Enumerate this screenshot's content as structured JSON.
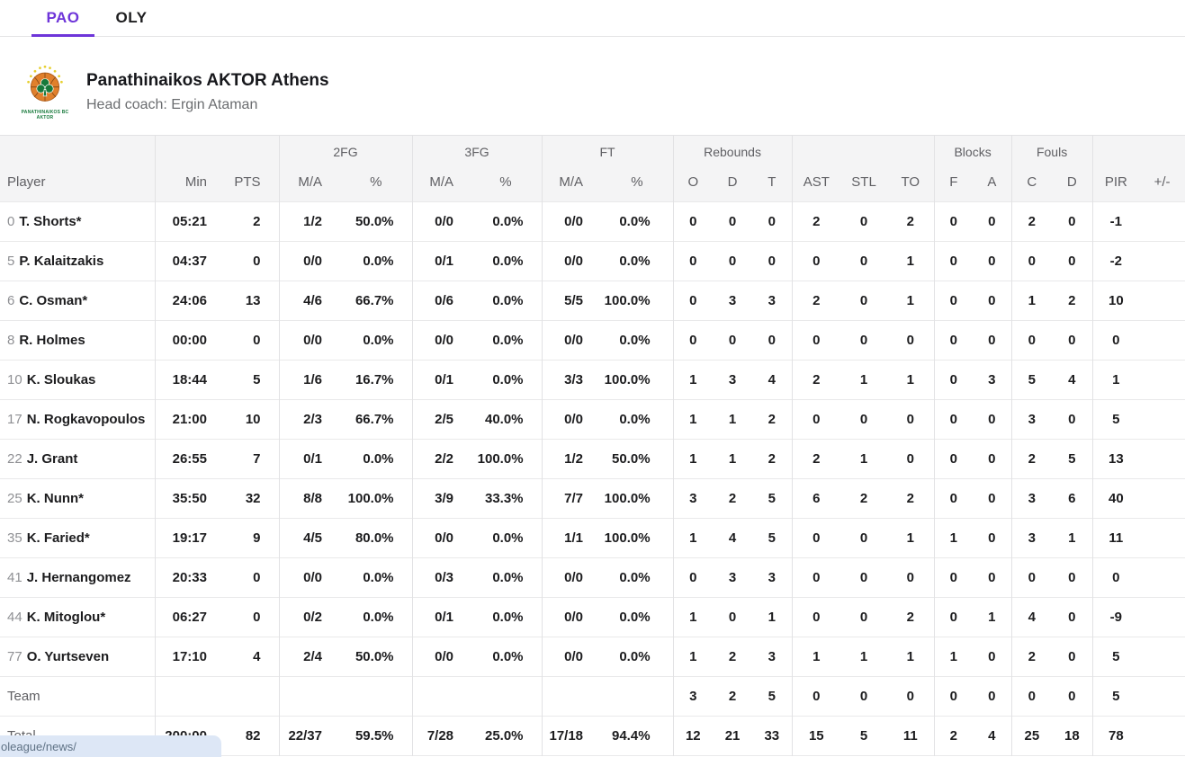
{
  "tabs": {
    "pao": "PAO",
    "oly": "OLY"
  },
  "team": {
    "name": "Panathinaikos AKTOR Athens",
    "coach": "Head coach: Ergin Ataman",
    "logo_text_line1": "PANATHINAIKOS BC",
    "logo_text_line2": "AKTOR"
  },
  "table": {
    "groups": {
      "fg2": "2FG",
      "fg3": "3FG",
      "ft": "FT",
      "rebounds": "Rebounds",
      "blocks": "Blocks",
      "fouls": "Fouls"
    },
    "headers": {
      "player": "Player",
      "min": "Min",
      "pts": "PTS",
      "ma": "M/A",
      "pct": "%",
      "reb_o": "O",
      "reb_d": "D",
      "reb_t": "T",
      "ast": "AST",
      "stl": "STL",
      "to": "TO",
      "blk_f": "F",
      "blk_a": "A",
      "foul_c": "C",
      "foul_d": "D",
      "pir": "PIR",
      "plus_minus": "+/-"
    },
    "rows": [
      {
        "num": "0",
        "name": "T. Shorts*",
        "min": "05:21",
        "pts": "2",
        "fg2_ma": "1/2",
        "fg2_pct": "50.0%",
        "fg3_ma": "0/0",
        "fg3_pct": "0.0%",
        "ft_ma": "0/0",
        "ft_pct": "0.0%",
        "reb_o": "0",
        "reb_d": "0",
        "reb_t": "0",
        "ast": "2",
        "stl": "0",
        "to": "2",
        "blk_f": "0",
        "blk_a": "0",
        "foul_c": "2",
        "foul_d": "0",
        "pir": "-1",
        "pm": ""
      },
      {
        "num": "5",
        "name": "P. Kalaitzakis",
        "min": "04:37",
        "pts": "0",
        "fg2_ma": "0/0",
        "fg2_pct": "0.0%",
        "fg3_ma": "0/1",
        "fg3_pct": "0.0%",
        "ft_ma": "0/0",
        "ft_pct": "0.0%",
        "reb_o": "0",
        "reb_d": "0",
        "reb_t": "0",
        "ast": "0",
        "stl": "0",
        "to": "1",
        "blk_f": "0",
        "blk_a": "0",
        "foul_c": "0",
        "foul_d": "0",
        "pir": "-2",
        "pm": ""
      },
      {
        "num": "6",
        "name": "C. Osman*",
        "min": "24:06",
        "pts": "13",
        "fg2_ma": "4/6",
        "fg2_pct": "66.7%",
        "fg3_ma": "0/6",
        "fg3_pct": "0.0%",
        "ft_ma": "5/5",
        "ft_pct": "100.0%",
        "reb_o": "0",
        "reb_d": "3",
        "reb_t": "3",
        "ast": "2",
        "stl": "0",
        "to": "1",
        "blk_f": "0",
        "blk_a": "0",
        "foul_c": "1",
        "foul_d": "2",
        "pir": "10",
        "pm": ""
      },
      {
        "num": "8",
        "name": "R. Holmes",
        "min": "00:00",
        "pts": "0",
        "fg2_ma": "0/0",
        "fg2_pct": "0.0%",
        "fg3_ma": "0/0",
        "fg3_pct": "0.0%",
        "ft_ma": "0/0",
        "ft_pct": "0.0%",
        "reb_o": "0",
        "reb_d": "0",
        "reb_t": "0",
        "ast": "0",
        "stl": "0",
        "to": "0",
        "blk_f": "0",
        "blk_a": "0",
        "foul_c": "0",
        "foul_d": "0",
        "pir": "0",
        "pm": ""
      },
      {
        "num": "10",
        "name": "K. Sloukas",
        "min": "18:44",
        "pts": "5",
        "fg2_ma": "1/6",
        "fg2_pct": "16.7%",
        "fg3_ma": "0/1",
        "fg3_pct": "0.0%",
        "ft_ma": "3/3",
        "ft_pct": "100.0%",
        "reb_o": "1",
        "reb_d": "3",
        "reb_t": "4",
        "ast": "2",
        "stl": "1",
        "to": "1",
        "blk_f": "0",
        "blk_a": "3",
        "foul_c": "5",
        "foul_d": "4",
        "pir": "1",
        "pm": ""
      },
      {
        "num": "17",
        "name": "N. Rogkavopoulos",
        "min": "21:00",
        "pts": "10",
        "fg2_ma": "2/3",
        "fg2_pct": "66.7%",
        "fg3_ma": "2/5",
        "fg3_pct": "40.0%",
        "ft_ma": "0/0",
        "ft_pct": "0.0%",
        "reb_o": "1",
        "reb_d": "1",
        "reb_t": "2",
        "ast": "0",
        "stl": "0",
        "to": "0",
        "blk_f": "0",
        "blk_a": "0",
        "foul_c": "3",
        "foul_d": "0",
        "pir": "5",
        "pm": ""
      },
      {
        "num": "22",
        "name": "J. Grant",
        "min": "26:55",
        "pts": "7",
        "fg2_ma": "0/1",
        "fg2_pct": "0.0%",
        "fg3_ma": "2/2",
        "fg3_pct": "100.0%",
        "ft_ma": "1/2",
        "ft_pct": "50.0%",
        "reb_o": "1",
        "reb_d": "1",
        "reb_t": "2",
        "ast": "2",
        "stl": "1",
        "to": "0",
        "blk_f": "0",
        "blk_a": "0",
        "foul_c": "2",
        "foul_d": "5",
        "pir": "13",
        "pm": ""
      },
      {
        "num": "25",
        "name": "K. Nunn*",
        "min": "35:50",
        "pts": "32",
        "fg2_ma": "8/8",
        "fg2_pct": "100.0%",
        "fg3_ma": "3/9",
        "fg3_pct": "33.3%",
        "ft_ma": "7/7",
        "ft_pct": "100.0%",
        "reb_o": "3",
        "reb_d": "2",
        "reb_t": "5",
        "ast": "6",
        "stl": "2",
        "to": "2",
        "blk_f": "0",
        "blk_a": "0",
        "foul_c": "3",
        "foul_d": "6",
        "pir": "40",
        "pm": ""
      },
      {
        "num": "35",
        "name": "K. Faried*",
        "min": "19:17",
        "pts": "9",
        "fg2_ma": "4/5",
        "fg2_pct": "80.0%",
        "fg3_ma": "0/0",
        "fg3_pct": "0.0%",
        "ft_ma": "1/1",
        "ft_pct": "100.0%",
        "reb_o": "1",
        "reb_d": "4",
        "reb_t": "5",
        "ast": "0",
        "stl": "0",
        "to": "1",
        "blk_f": "1",
        "blk_a": "0",
        "foul_c": "3",
        "foul_d": "1",
        "pir": "11",
        "pm": ""
      },
      {
        "num": "41",
        "name": "J. Hernangomez",
        "min": "20:33",
        "pts": "0",
        "fg2_ma": "0/0",
        "fg2_pct": "0.0%",
        "fg3_ma": "0/3",
        "fg3_pct": "0.0%",
        "ft_ma": "0/0",
        "ft_pct": "0.0%",
        "reb_o": "0",
        "reb_d": "3",
        "reb_t": "3",
        "ast": "0",
        "stl": "0",
        "to": "0",
        "blk_f": "0",
        "blk_a": "0",
        "foul_c": "0",
        "foul_d": "0",
        "pir": "0",
        "pm": ""
      },
      {
        "num": "44",
        "name": "K. Mitoglou*",
        "min": "06:27",
        "pts": "0",
        "fg2_ma": "0/2",
        "fg2_pct": "0.0%",
        "fg3_ma": "0/1",
        "fg3_pct": "0.0%",
        "ft_ma": "0/0",
        "ft_pct": "0.0%",
        "reb_o": "1",
        "reb_d": "0",
        "reb_t": "1",
        "ast": "0",
        "stl": "0",
        "to": "2",
        "blk_f": "0",
        "blk_a": "1",
        "foul_c": "4",
        "foul_d": "0",
        "pir": "-9",
        "pm": ""
      },
      {
        "num": "77",
        "name": "O. Yurtseven",
        "min": "17:10",
        "pts": "4",
        "fg2_ma": "2/4",
        "fg2_pct": "50.0%",
        "fg3_ma": "0/0",
        "fg3_pct": "0.0%",
        "ft_ma": "0/0",
        "ft_pct": "0.0%",
        "reb_o": "1",
        "reb_d": "2",
        "reb_t": "3",
        "ast": "1",
        "stl": "1",
        "to": "1",
        "blk_f": "1",
        "blk_a": "0",
        "foul_c": "2",
        "foul_d": "0",
        "pir": "5",
        "pm": ""
      }
    ],
    "team_row": {
      "label": "Team",
      "min": "",
      "pts": "",
      "fg2_ma": "",
      "fg2_pct": "",
      "fg3_ma": "",
      "fg3_pct": "",
      "ft_ma": "",
      "ft_pct": "",
      "reb_o": "3",
      "reb_d": "2",
      "reb_t": "5",
      "ast": "0",
      "stl": "0",
      "to": "0",
      "blk_f": "0",
      "blk_a": "0",
      "foul_c": "0",
      "foul_d": "0",
      "pir": "5",
      "pm": ""
    },
    "total_row": {
      "label": "Total",
      "min": "200:00",
      "pts": "82",
      "fg2_ma": "22/37",
      "fg2_pct": "59.5%",
      "fg3_ma": "7/28",
      "fg3_pct": "25.0%",
      "ft_ma": "17/18",
      "ft_pct": "94.4%",
      "reb_o": "12",
      "reb_d": "21",
      "reb_t": "33",
      "ast": "15",
      "stl": "5",
      "to": "11",
      "blk_f": "2",
      "blk_a": "4",
      "foul_c": "25",
      "foul_d": "18",
      "pir": "78",
      "pm": ""
    }
  },
  "statusbar": {
    "url_text": "oleague/news/"
  },
  "colors": {
    "accent_purple": "#6e35d9",
    "header_bg": "#f4f4f5",
    "border": "#e2e2e4",
    "text_dark": "#1c1c1e",
    "text_gray": "#5f5f63",
    "jersey_gray": "#8f9094",
    "status_bg": "#dde7f6",
    "status_text": "#5f7285",
    "logo_green": "#17793b",
    "logo_orange": "#e0802c"
  }
}
